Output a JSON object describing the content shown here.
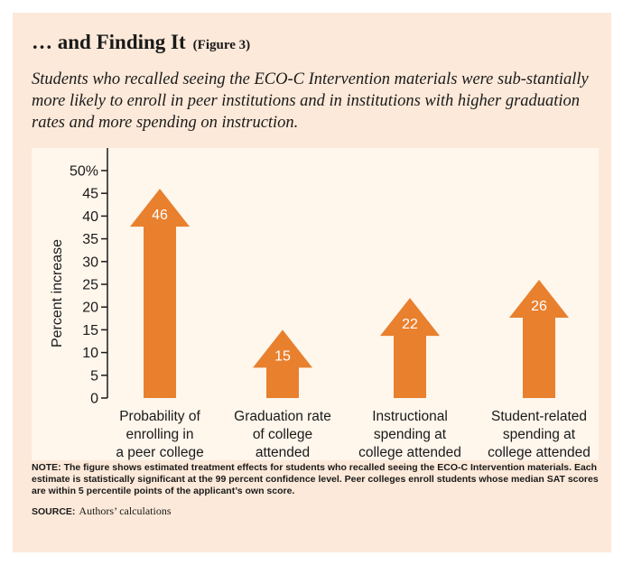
{
  "header": {
    "title": "… and Finding It",
    "figure_ref": "(Figure 3)",
    "subtitle": "Students who recalled seeing the ECO-C Intervention materials were sub-stantially more likely to enroll in peer institutions and in institutions with higher graduation rates and more spending on instruction."
  },
  "chart_data": {
    "type": "bar",
    "categories": [
      "Probability of\nenrolling in\na peer college",
      "Graduation rate\nof college\nattended",
      "Instructional\nspending at\ncollege attended",
      "Student-related\nspending at\ncollege attended"
    ],
    "values": [
      46,
      15,
      22,
      26
    ],
    "data_labels": [
      "46",
      "15",
      "22",
      "26"
    ],
    "ylabel": "Percent increase",
    "ylim": [
      0,
      50
    ],
    "yticks": [
      "0",
      "5",
      "10",
      "15",
      "20",
      "25",
      "30",
      "35",
      "40",
      "45",
      "50%"
    ],
    "bar_color": "#e8802e",
    "label_color": "#ffffff",
    "grid": false
  },
  "footer": {
    "note": "NOTE: The figure shows estimated treatment effects for students who recalled seeing the ECO-C Intervention materials. Each estimate is statistically significant at the 99 percent confidence level. Peer colleges enroll students whose median SAT scores are within 5 percentile points of the applicant’s own score.",
    "source_label": "SOURCE:",
    "source_text": "Authors’ calculations"
  }
}
